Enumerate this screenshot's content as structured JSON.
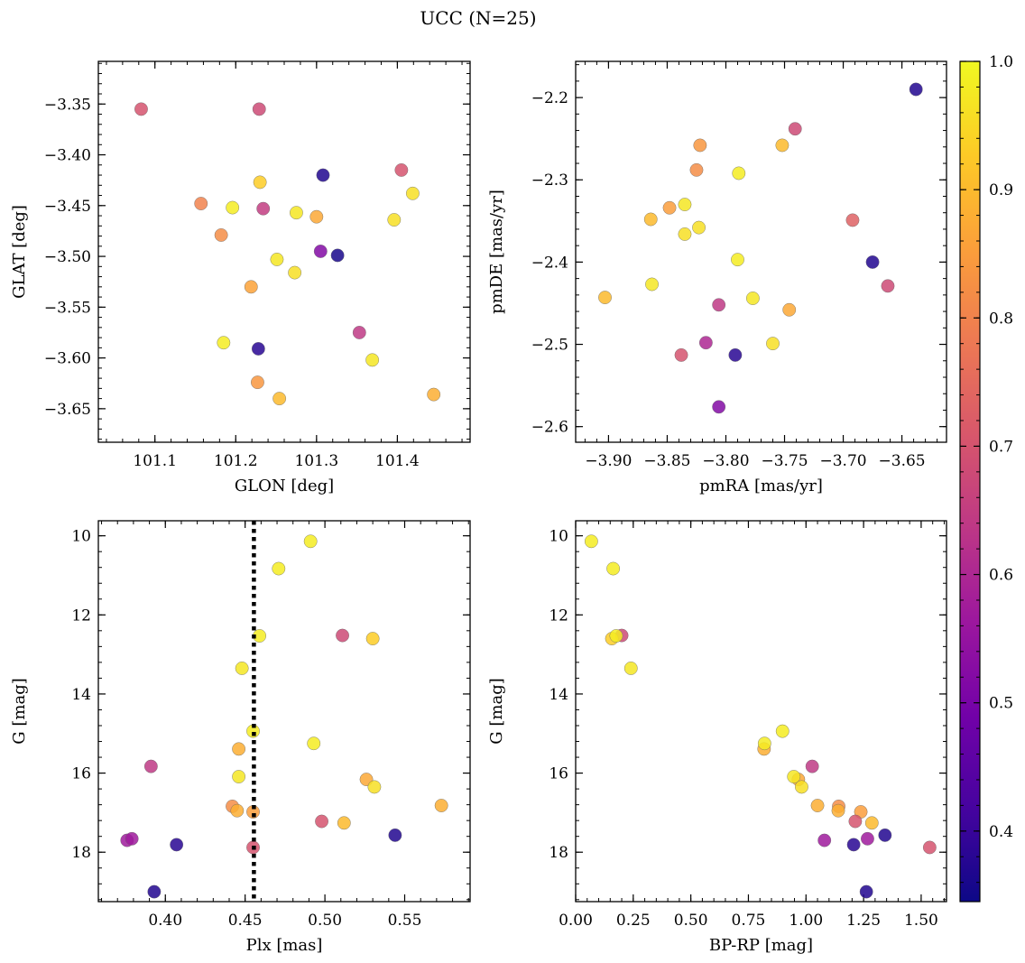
{
  "figure": {
    "title": "UCC (N=25)"
  },
  "colorbar": {
    "colormap": "plasma",
    "range": [
      0.345,
      1.0
    ],
    "ticks": [
      0.4,
      0.5,
      0.6,
      0.7,
      0.8,
      0.9,
      1.0
    ],
    "tick_labels": [
      "0.4",
      "0.5",
      "0.6",
      "0.7",
      "0.8",
      "0.9",
      "1.0"
    ]
  },
  "chart_data": [
    {
      "type": "scatter",
      "xlabel": "GLON [deg]",
      "ylabel": "GLAT [deg]",
      "xlim": [
        101.03,
        101.49
      ],
      "ylim": [
        -3.683,
        -3.308
      ],
      "y_inverted": false,
      "x_ticks": [
        101.1,
        101.2,
        101.3,
        101.4
      ],
      "x_tick_labels": [
        "101.1",
        "101.2",
        "101.3",
        "101.4"
      ],
      "y_ticks": [
        -3.35,
        -3.4,
        -3.45,
        -3.5,
        -3.55,
        -3.6,
        -3.65
      ],
      "y_tick_labels": [
        "−3.35",
        "−3.40",
        "−3.45",
        "−3.50",
        "−3.55",
        "−3.60",
        "−3.65"
      ],
      "points": [
        {
          "x": 101.083,
          "y": -3.355,
          "c": 0.7
        },
        {
          "x": 101.229,
          "y": -3.355,
          "c": 0.68
        },
        {
          "x": 101.308,
          "y": -3.42,
          "c": 0.37
        },
        {
          "x": 101.23,
          "y": -3.427,
          "c": 0.93
        },
        {
          "x": 101.405,
          "y": -3.415,
          "c": 0.7
        },
        {
          "x": 101.157,
          "y": -3.448,
          "c": 0.8
        },
        {
          "x": 101.196,
          "y": -3.452,
          "c": 0.98
        },
        {
          "x": 101.234,
          "y": -3.453,
          "c": 0.65
        },
        {
          "x": 101.275,
          "y": -3.457,
          "c": 0.97
        },
        {
          "x": 101.3,
          "y": -3.461,
          "c": 0.87
        },
        {
          "x": 101.419,
          "y": -3.438,
          "c": 0.96
        },
        {
          "x": 101.396,
          "y": -3.464,
          "c": 0.96
        },
        {
          "x": 101.182,
          "y": -3.479,
          "c": 0.82
        },
        {
          "x": 101.305,
          "y": -3.495,
          "c": 0.52
        },
        {
          "x": 101.326,
          "y": -3.499,
          "c": 0.36
        },
        {
          "x": 101.251,
          "y": -3.503,
          "c": 0.97
        },
        {
          "x": 101.273,
          "y": -3.516,
          "c": 0.96
        },
        {
          "x": 101.219,
          "y": -3.53,
          "c": 0.86
        },
        {
          "x": 101.353,
          "y": -3.575,
          "c": 0.64
        },
        {
          "x": 101.185,
          "y": -3.585,
          "c": 0.98
        },
        {
          "x": 101.228,
          "y": -3.591,
          "c": 0.38
        },
        {
          "x": 101.369,
          "y": -3.602,
          "c": 0.97
        },
        {
          "x": 101.227,
          "y": -3.624,
          "c": 0.84
        },
        {
          "x": 101.254,
          "y": -3.64,
          "c": 0.9
        },
        {
          "x": 101.445,
          "y": -3.636,
          "c": 0.88
        }
      ]
    },
    {
      "type": "scatter",
      "xlabel": "pmRA [mas/yr]",
      "ylabel": "pmDE [mas/yr]",
      "xlim": [
        -3.928,
        -3.612
      ],
      "ylim": [
        -2.619,
        -2.156
      ],
      "y_inverted": false,
      "x_ticks": [
        -3.9,
        -3.85,
        -3.8,
        -3.75,
        -3.7,
        -3.65
      ],
      "x_tick_labels": [
        "−3.90",
        "−3.85",
        "−3.80",
        "−3.75",
        "−3.70",
        "−3.65"
      ],
      "y_ticks": [
        -2.2,
        -2.3,
        -2.4,
        -2.5,
        -2.6
      ],
      "y_tick_labels": [
        "−2.2",
        "−2.3",
        "−2.4",
        "−2.5",
        "−2.6"
      ],
      "points": [
        {
          "x": -3.638,
          "y": -2.19,
          "c": 0.37
        },
        {
          "x": -3.741,
          "y": -2.238,
          "c": 0.68
        },
        {
          "x": -3.822,
          "y": -2.258,
          "c": 0.84
        },
        {
          "x": -3.752,
          "y": -2.258,
          "c": 0.9
        },
        {
          "x": -3.825,
          "y": -2.288,
          "c": 0.82
        },
        {
          "x": -3.789,
          "y": -2.292,
          "c": 0.98
        },
        {
          "x": -3.848,
          "y": -2.334,
          "c": 0.85
        },
        {
          "x": -3.835,
          "y": -2.33,
          "c": 0.97
        },
        {
          "x": -3.864,
          "y": -2.348,
          "c": 0.9
        },
        {
          "x": -3.692,
          "y": -2.349,
          "c": 0.73
        },
        {
          "x": -3.823,
          "y": -2.358,
          "c": 0.96
        },
        {
          "x": -3.835,
          "y": -2.366,
          "c": 0.96
        },
        {
          "x": -3.79,
          "y": -2.397,
          "c": 0.98
        },
        {
          "x": -3.675,
          "y": -2.4,
          "c": 0.37
        },
        {
          "x": -3.662,
          "y": -2.429,
          "c": 0.68
        },
        {
          "x": -3.863,
          "y": -2.427,
          "c": 0.97
        },
        {
          "x": -3.903,
          "y": -2.443,
          "c": 0.9
        },
        {
          "x": -3.777,
          "y": -2.444,
          "c": 0.97
        },
        {
          "x": -3.806,
          "y": -2.452,
          "c": 0.64
        },
        {
          "x": -3.746,
          "y": -2.458,
          "c": 0.87
        },
        {
          "x": -3.817,
          "y": -2.498,
          "c": 0.6
        },
        {
          "x": -3.76,
          "y": -2.499,
          "c": 0.96
        },
        {
          "x": -3.838,
          "y": -2.513,
          "c": 0.7
        },
        {
          "x": -3.792,
          "y": -2.513,
          "c": 0.38
        },
        {
          "x": -3.806,
          "y": -2.576,
          "c": 0.52
        }
      ]
    },
    {
      "type": "scatter",
      "xlabel": "Plx [mas]",
      "ylabel": "G [mag]",
      "xlim": [
        0.358,
        0.591
      ],
      "ylim": [
        19.25,
        9.62
      ],
      "y_inverted": true,
      "x_ticks": [
        0.4,
        0.45,
        0.5,
        0.55
      ],
      "x_tick_labels": [
        "0.40",
        "0.45",
        "0.50",
        "0.55"
      ],
      "y_ticks": [
        10,
        12,
        14,
        16,
        18
      ],
      "y_tick_labels": [
        "10",
        "12",
        "14",
        "16",
        "18"
      ],
      "vline_x": 0.4555,
      "points": [
        {
          "x": 0.491,
          "y": 10.14,
          "c": 0.98
        },
        {
          "x": 0.471,
          "y": 10.83,
          "c": 0.98
        },
        {
          "x": 0.459,
          "y": 12.53,
          "c": 0.98
        },
        {
          "x": 0.511,
          "y": 12.52,
          "c": 0.68
        },
        {
          "x": 0.53,
          "y": 12.6,
          "c": 0.93
        },
        {
          "x": 0.448,
          "y": 13.35,
          "c": 0.97
        },
        {
          "x": 0.455,
          "y": 14.94,
          "c": 0.98
        },
        {
          "x": 0.493,
          "y": 15.25,
          "c": 0.98
        },
        {
          "x": 0.446,
          "y": 15.39,
          "c": 0.88
        },
        {
          "x": 0.391,
          "y": 15.83,
          "c": 0.64
        },
        {
          "x": 0.446,
          "y": 16.09,
          "c": 0.97
        },
        {
          "x": 0.526,
          "y": 16.16,
          "c": 0.87
        },
        {
          "x": 0.531,
          "y": 16.35,
          "c": 0.96
        },
        {
          "x": 0.573,
          "y": 16.82,
          "c": 0.88
        },
        {
          "x": 0.442,
          "y": 16.84,
          "c": 0.82
        },
        {
          "x": 0.445,
          "y": 16.95,
          "c": 0.88
        },
        {
          "x": 0.455,
          "y": 16.98,
          "c": 0.85
        },
        {
          "x": 0.498,
          "y": 17.22,
          "c": 0.7
        },
        {
          "x": 0.512,
          "y": 17.26,
          "c": 0.9
        },
        {
          "x": 0.544,
          "y": 17.57,
          "c": 0.37
        },
        {
          "x": 0.376,
          "y": 17.7,
          "c": 0.57
        },
        {
          "x": 0.379,
          "y": 17.66,
          "c": 0.57
        },
        {
          "x": 0.407,
          "y": 17.81,
          "c": 0.38
        },
        {
          "x": 0.455,
          "y": 17.88,
          "c": 0.7
        },
        {
          "x": 0.393,
          "y": 19.0,
          "c": 0.37
        }
      ]
    },
    {
      "type": "scatter",
      "xlabel": "BP-RP [mag]",
      "ylabel": "G [mag]",
      "xlim": [
        0.0,
        1.61
      ],
      "ylim": [
        19.25,
        9.62
      ],
      "y_inverted": true,
      "x_ticks": [
        0.0,
        0.25,
        0.5,
        0.75,
        1.0,
        1.25,
        1.5
      ],
      "x_tick_labels": [
        "0.00",
        "0.25",
        "0.50",
        "0.75",
        "1.00",
        "1.25",
        "1.50"
      ],
      "y_ticks": [
        10,
        12,
        14,
        16,
        18
      ],
      "y_tick_labels": [
        "10",
        "12",
        "14",
        "16",
        "18"
      ],
      "points": [
        {
          "x": 0.068,
          "y": 10.14,
          "c": 0.98
        },
        {
          "x": 0.163,
          "y": 10.83,
          "c": 0.98
        },
        {
          "x": 0.2,
          "y": 12.52,
          "c": 0.68
        },
        {
          "x": 0.157,
          "y": 12.6,
          "c": 0.93
        },
        {
          "x": 0.176,
          "y": 12.53,
          "c": 0.98
        },
        {
          "x": 0.24,
          "y": 13.35,
          "c": 0.97
        },
        {
          "x": 0.898,
          "y": 14.94,
          "c": 0.98
        },
        {
          "x": 0.818,
          "y": 15.39,
          "c": 0.88
        },
        {
          "x": 0.82,
          "y": 15.25,
          "c": 0.98
        },
        {
          "x": 1.027,
          "y": 15.83,
          "c": 0.64
        },
        {
          "x": 0.967,
          "y": 16.16,
          "c": 0.87
        },
        {
          "x": 0.947,
          "y": 16.09,
          "c": 0.97
        },
        {
          "x": 0.981,
          "y": 16.35,
          "c": 0.96
        },
        {
          "x": 1.05,
          "y": 16.82,
          "c": 0.88
        },
        {
          "x": 1.142,
          "y": 16.84,
          "c": 0.82
        },
        {
          "x": 1.14,
          "y": 16.95,
          "c": 0.88
        },
        {
          "x": 1.238,
          "y": 16.98,
          "c": 0.85
        },
        {
          "x": 1.214,
          "y": 17.22,
          "c": 0.7
        },
        {
          "x": 1.286,
          "y": 17.26,
          "c": 0.9
        },
        {
          "x": 1.343,
          "y": 17.57,
          "c": 0.37
        },
        {
          "x": 1.08,
          "y": 17.7,
          "c": 0.57
        },
        {
          "x": 1.267,
          "y": 17.66,
          "c": 0.57
        },
        {
          "x": 1.207,
          "y": 17.81,
          "c": 0.38
        },
        {
          "x": 1.537,
          "y": 17.88,
          "c": 0.7
        },
        {
          "x": 1.262,
          "y": 19.0,
          "c": 0.37
        }
      ]
    }
  ]
}
